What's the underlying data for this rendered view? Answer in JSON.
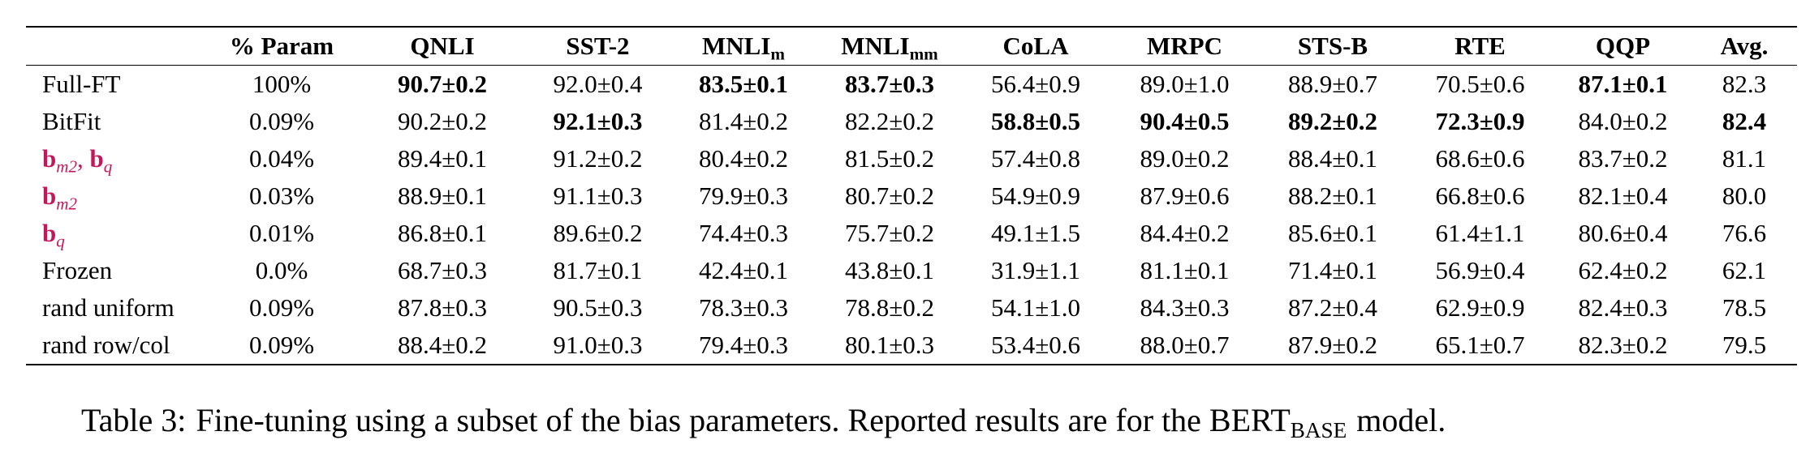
{
  "table": {
    "header": [
      "% Param",
      "QNLI",
      "SST-2",
      {
        "text": "MNLI",
        "sub": "m"
      },
      {
        "text": "MNLI",
        "sub": "mm"
      },
      "CoLA",
      "MRPC",
      "STS-B",
      "RTE",
      "QQP",
      "Avg."
    ],
    "highlight_color": "#c2185b",
    "rows": [
      {
        "label": "Full-FT",
        "cells": [
          "100%",
          {
            "text": "90.7±0.2",
            "bold": true
          },
          "92.0±0.4",
          {
            "text": "83.5±0.1",
            "bold": true
          },
          {
            "text": "83.7±0.3",
            "bold": true
          },
          "56.4±0.9",
          "89.0±1.0",
          "88.9±0.7",
          "70.5±0.6",
          {
            "text": "87.1±0.1",
            "bold": true
          },
          "82.3"
        ]
      },
      {
        "label": "BitFit",
        "cells": [
          "0.09%",
          "90.2±0.2",
          {
            "text": "92.1±0.3",
            "bold": true
          },
          "81.4±0.2",
          "82.2±0.2",
          {
            "text": "58.8±0.5",
            "bold": true
          },
          {
            "text": "90.4±0.5",
            "bold": true
          },
          {
            "text": "89.2±0.2",
            "bold": true
          },
          {
            "text": "72.3±0.9",
            "bold": true
          },
          "84.0±0.2",
          {
            "text": "82.4",
            "bold": true
          }
        ]
      },
      {
        "label": [
          {
            "text": "b",
            "sub": "m2"
          },
          {
            "text": ", "
          },
          {
            "text": "b",
            "sub": "q"
          }
        ],
        "cells": [
          "0.04%",
          "89.4±0.1",
          "91.2±0.2",
          "80.4±0.2",
          "81.5±0.2",
          "57.4±0.8",
          "89.0±0.2",
          "88.4±0.1",
          "68.6±0.6",
          "83.7±0.2",
          "81.1"
        ]
      },
      {
        "label": [
          {
            "text": "b",
            "sub": "m2"
          }
        ],
        "cells": [
          "0.03%",
          "88.9±0.1",
          "91.1±0.3",
          "79.9±0.3",
          "80.7±0.2",
          "54.9±0.9",
          "87.9±0.6",
          "88.2±0.1",
          "66.8±0.6",
          "82.1±0.4",
          "80.0"
        ]
      },
      {
        "label": [
          {
            "text": "b",
            "sub": "q"
          }
        ],
        "cells": [
          "0.01%",
          "86.8±0.1",
          "89.6±0.2",
          "74.4±0.3",
          "75.7±0.2",
          "49.1±1.5",
          "84.4±0.2",
          "85.6±0.1",
          "61.4±1.1",
          "80.6±0.4",
          "76.6"
        ]
      },
      {
        "label": "Frozen",
        "cells": [
          "0.0%",
          "68.7±0.3",
          "81.7±0.1",
          "42.4±0.1",
          "43.8±0.1",
          "31.9±1.1",
          "81.1±0.1",
          "71.4±0.1",
          "56.9±0.4",
          "62.4±0.2",
          "62.1"
        ]
      },
      {
        "label": "rand uniform",
        "cells": [
          "0.09%",
          "87.8±0.3",
          "90.5±0.3",
          "78.3±0.3",
          "78.8±0.2",
          "54.1±1.0",
          "84.3±0.3",
          "87.2±0.4",
          "62.9±0.9",
          "82.4±0.3",
          "78.5"
        ]
      },
      {
        "label": "rand row/col",
        "cells": [
          "0.09%",
          "88.4±0.2",
          "91.0±0.3",
          "79.4±0.3",
          "80.1±0.3",
          "53.4±0.6",
          "88.0±0.7",
          "87.9±0.2",
          "65.1±0.7",
          "82.3±0.2",
          "79.5"
        ]
      }
    ]
  },
  "caption": {
    "label": "Table 3:",
    "text": "Fine-tuning using a subset of the bias parameters. Reported results are for the BERT",
    "sub": "BASE",
    "end": "model."
  }
}
